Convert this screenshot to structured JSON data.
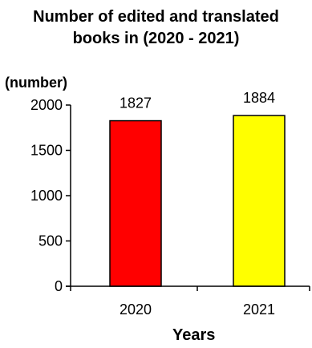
{
  "chart_data": {
    "type": "bar",
    "title_lines": [
      "Number of edited and translated",
      "books in (2020 - 2021)"
    ],
    "ylabel": "(number)",
    "xlabel": "Years",
    "categories": [
      "2020",
      "2021"
    ],
    "values": [
      1827,
      1884
    ],
    "data_labels": [
      "1827",
      "1884"
    ],
    "bar_colors": [
      "#ff0000",
      "#ffff00"
    ],
    "ylim": [
      0,
      2000
    ],
    "yticks": [
      0,
      500,
      1000,
      1500,
      2000
    ],
    "grid": false,
    "legend": "none"
  }
}
